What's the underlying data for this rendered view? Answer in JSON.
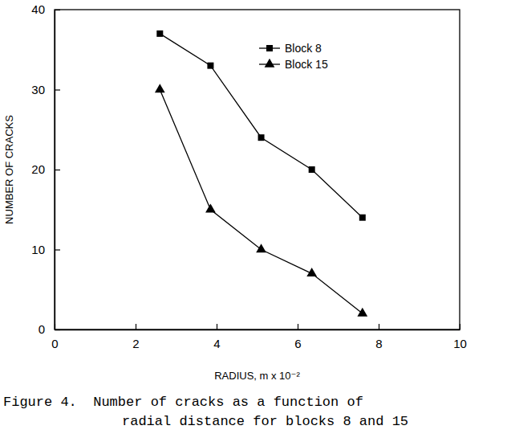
{
  "chart_data": {
    "type": "line",
    "title": [
      "Figure 4.  Number of cracks as a function of",
      "radial distance for blocks 8 and 15"
    ],
    "x_label": "RADIUS, m x 10⁻²",
    "y_label": "NUMBER OF CRACKS",
    "x": [
      2.6,
      3.85,
      5.1,
      6.35,
      7.6
    ],
    "series": [
      {
        "name": "Block 8",
        "color": "#000000",
        "marker": "square",
        "line_style": "solid",
        "values": [
          37,
          33,
          24,
          20,
          14
        ]
      },
      {
        "name": "Block 15",
        "color": "#000000",
        "marker": "triangle",
        "line_style": "solid",
        "values": [
          30,
          15,
          10,
          7,
          2
        ]
      }
    ],
    "xlim": [
      0,
      10
    ],
    "xticks": [
      0,
      2,
      4,
      6,
      8,
      10
    ],
    "ylim": [
      0,
      40
    ],
    "yticks": [
      0,
      10,
      20,
      30,
      40
    ],
    "grid": false,
    "legend": "upper right"
  }
}
